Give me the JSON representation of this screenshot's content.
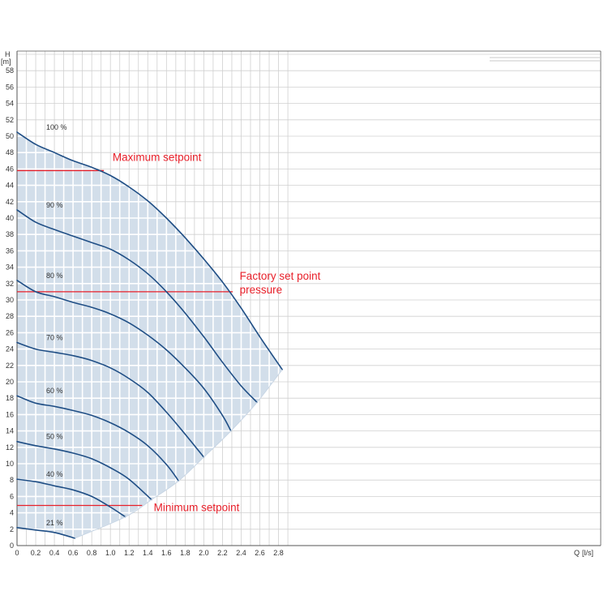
{
  "colors": {
    "curve": "#1f4e85",
    "annotation": "#e8202a",
    "region_fill": "#d2deea",
    "grid": "#ffffff",
    "grid_outside": "#d0d0d0",
    "axis": "#555555"
  },
  "chart_data": {
    "type": "line",
    "title": "",
    "xlabel": "Q [l/s]",
    "ylabel": "H [m]",
    "y_unit": "[m]",
    "x_label_short": "Q",
    "x_unit": "[l/s]",
    "y_label_short": "H",
    "xlim": [
      0,
      3.0
    ],
    "ylim": [
      0,
      60
    ],
    "x_ticks": [
      "0",
      "0.2",
      "0.4",
      "0.6",
      "0.8",
      "1.0",
      "1.2",
      "1.4",
      "1.6",
      "1.8",
      "2.0",
      "2.2",
      "2.4",
      "2.6",
      "2.8"
    ],
    "x_tick_values": [
      0,
      0.2,
      0.4,
      0.6,
      0.8,
      1.0,
      1.2,
      1.4,
      1.6,
      1.8,
      2.0,
      2.2,
      2.4,
      2.6,
      2.8
    ],
    "y_ticks": [
      "0",
      "2",
      "4",
      "6",
      "8",
      "10",
      "12",
      "14",
      "16",
      "18",
      "20",
      "22",
      "24",
      "26",
      "28",
      "30",
      "32",
      "34",
      "36",
      "38",
      "40",
      "42",
      "44",
      "46",
      "48",
      "50",
      "52",
      "54",
      "56",
      "58"
    ],
    "y_tick_values": [
      0,
      2,
      4,
      6,
      8,
      10,
      12,
      14,
      16,
      18,
      20,
      22,
      24,
      26,
      28,
      30,
      32,
      34,
      36,
      38,
      40,
      42,
      44,
      46,
      48,
      50,
      52,
      54,
      56,
      58
    ],
    "grid": true,
    "series": [
      {
        "name": "100 %",
        "x": [
          0,
          0.2,
          0.4,
          0.6,
          0.8,
          1.0,
          1.2,
          1.4,
          1.6,
          1.8,
          2.0,
          2.2,
          2.4,
          2.6,
          2.84
        ],
        "y": [
          50.5,
          49.0,
          48.0,
          47.0,
          46.2,
          45.2,
          43.8,
          42.1,
          40.0,
          37.6,
          35.0,
          32.2,
          29.0,
          25.5,
          21.5
        ]
      },
      {
        "name": "90 %",
        "x": [
          0,
          0.2,
          0.4,
          0.6,
          0.8,
          1.0,
          1.2,
          1.4,
          1.6,
          1.8,
          2.0,
          2.2,
          2.4,
          2.57
        ],
        "y": [
          41.0,
          39.5,
          38.6,
          37.8,
          37.0,
          36.2,
          34.9,
          33.2,
          31.0,
          28.4,
          25.5,
          22.4,
          19.5,
          17.5
        ]
      },
      {
        "name": "80 %",
        "x": [
          0,
          0.2,
          0.4,
          0.6,
          0.8,
          1.0,
          1.2,
          1.4,
          1.6,
          1.8,
          2.0,
          2.2,
          2.29
        ],
        "y": [
          32.4,
          31.0,
          30.4,
          29.7,
          29.1,
          28.3,
          27.2,
          25.7,
          23.9,
          21.7,
          19.2,
          15.9,
          14.0
        ]
      },
      {
        "name": "70 %",
        "x": [
          0,
          0.2,
          0.4,
          0.6,
          0.8,
          1.0,
          1.2,
          1.4,
          1.6,
          1.8,
          2.0
        ],
        "y": [
          24.8,
          24.0,
          23.6,
          23.2,
          22.6,
          21.7,
          20.4,
          18.7,
          16.3,
          13.6,
          10.8
        ]
      },
      {
        "name": "60 %",
        "x": [
          0,
          0.2,
          0.4,
          0.6,
          0.8,
          1.0,
          1.2,
          1.4,
          1.6,
          1.73
        ],
        "y": [
          18.3,
          17.4,
          17.0,
          16.5,
          15.9,
          15.0,
          13.8,
          12.2,
          9.9,
          7.9
        ]
      },
      {
        "name": "50 %",
        "x": [
          0,
          0.2,
          0.4,
          0.6,
          0.8,
          1.0,
          1.2,
          1.44
        ],
        "y": [
          12.7,
          12.2,
          11.8,
          11.3,
          10.6,
          9.5,
          8.1,
          5.6
        ]
      },
      {
        "name": "40 %",
        "x": [
          0,
          0.2,
          0.4,
          0.6,
          0.8,
          1.0,
          1.16
        ],
        "y": [
          8.1,
          7.8,
          7.3,
          6.8,
          6.0,
          4.7,
          3.5
        ]
      },
      {
        "name": "21 %",
        "x": [
          0,
          0.2,
          0.4,
          0.62
        ],
        "y": [
          2.2,
          1.9,
          1.6,
          0.9
        ]
      }
    ],
    "lower_boundary": {
      "x": [
        0.62,
        1.16,
        1.44,
        1.73,
        2.0,
        2.29,
        2.57,
        2.84
      ],
      "y": [
        0.9,
        3.5,
        5.6,
        7.9,
        10.8,
        14.0,
        17.5,
        21.5
      ]
    },
    "reference_lines": [
      {
        "label": "Maximum setpoint",
        "y": 45.8,
        "x_end": 0.93
      },
      {
        "label": "Factory set point pressure",
        "y": 31.0,
        "x_end": 2.31
      },
      {
        "label": "Minimum setpoint",
        "y": 4.9,
        "x_end": 1.34
      }
    ],
    "annotations": [
      {
        "text": "Maximum setpoint",
        "x": 0.98,
        "y": 47.0
      },
      {
        "text": "Factory set point",
        "x": 2.34,
        "y": 32.5
      },
      {
        "text": "pressure",
        "x": 2.34,
        "y": 30.8
      },
      {
        "text": "Minimum setpoint",
        "x": 1.42,
        "y": 4.2
      }
    ]
  }
}
